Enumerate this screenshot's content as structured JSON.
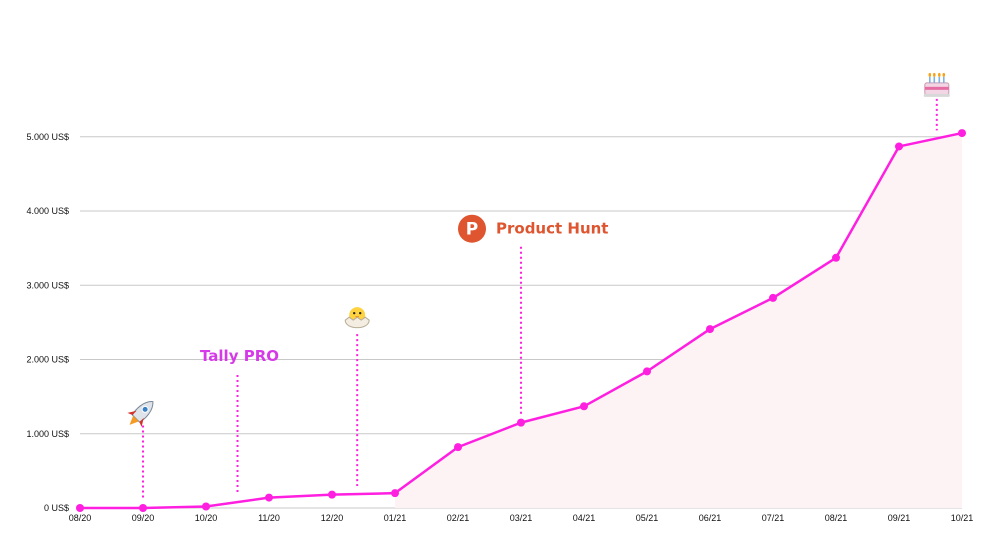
{
  "chart_data": {
    "type": "area",
    "categories": [
      "08/20",
      "09/20",
      "10/20",
      "11/20",
      "12/20",
      "01/21",
      "02/21",
      "03/21",
      "04/21",
      "05/21",
      "06/21",
      "07/21",
      "08/21",
      "09/21",
      "10/21"
    ],
    "series": [
      {
        "values": [
          0,
          0,
          20,
          140,
          180,
          200,
          820,
          1150,
          1370,
          1840,
          2410,
          2830,
          3370,
          4870,
          5050
        ]
      }
    ],
    "yticks": [
      0,
      1000,
      2000,
      3000,
      4000,
      5000
    ],
    "ytick_labels": [
      "0 US$",
      "1.000 US$",
      "2.000 US$",
      "3.000 US$",
      "4.000 US$",
      "5.000 US$"
    ],
    "ylim": [
      0,
      5000
    ],
    "grid": true,
    "title": "",
    "xlabel": "",
    "ylabel": "",
    "annotations": [
      {
        "type": "icon",
        "icon": "rocket-icon",
        "x_index": 1,
        "top_value": 1300
      },
      {
        "type": "text",
        "text": "Tally PRO",
        "x_index": 2.5,
        "top_value": 1900
      },
      {
        "type": "icon",
        "icon": "hatching-chick-icon",
        "x_index": 4.4,
        "top_value": 2530
      },
      {
        "type": "text",
        "text": "Product Hunt",
        "icon": "product-hunt-logo",
        "logo_letter": "P",
        "x_index": 7,
        "top_value": 3600
      },
      {
        "type": "icon",
        "icon": "birthday-cake-icon",
        "x_index": 13.6,
        "top_value": 5700
      }
    ],
    "colors": {
      "line": "#ff1fe0",
      "fill": "#fdf3f5",
      "grid": "#c8c8c8",
      "tally_pro": "#d63ae8",
      "product_hunt": "#de5530"
    }
  }
}
